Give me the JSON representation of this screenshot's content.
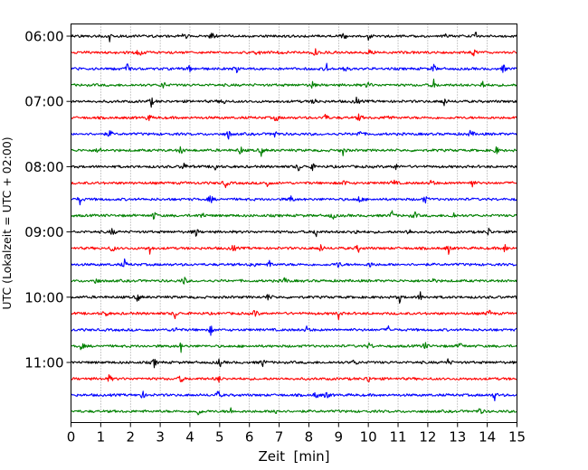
{
  "chart_data": {
    "type": "line",
    "xlabel": "Zeit  [min]",
    "ylabel": "UTC (Lokalzeit = UTC + 02:00)",
    "xlim": [
      0,
      15
    ],
    "x_ticks": [
      "0",
      "1",
      "2",
      "3",
      "4",
      "5",
      "6",
      "7",
      "8",
      "9",
      "10",
      "11",
      "12",
      "13",
      "14",
      "15"
    ],
    "y_ticks": [
      {
        "label": "06:00",
        "trace": 0
      },
      {
        "label": "07:00",
        "trace": 4
      },
      {
        "label": "08:00",
        "trace": 8
      },
      {
        "label": "09:00",
        "trace": 12
      },
      {
        "label": "10:00",
        "trace": 16
      },
      {
        "label": "11:00",
        "trace": 20
      }
    ],
    "grid": "vertical dotted at each minute",
    "trace_interval_minutes": 15,
    "trace_count": 24,
    "color_cycle": [
      "#000000",
      "#ff0000",
      "#0000ff",
      "#008000"
    ],
    "traces": [
      {
        "start": "06:00",
        "events": [
          1.3,
          3.8,
          4.75,
          9.2,
          10.0,
          12.55,
          13.6
        ]
      },
      {
        "start": "06:15",
        "events": [
          2.3,
          6.3,
          8.2,
          10.05,
          13.55
        ]
      },
      {
        "start": "06:30",
        "events": [
          1.9,
          4.0,
          5.55,
          8.6,
          9.2,
          12.2,
          14.55
        ]
      },
      {
        "start": "06:45",
        "events": [
          3.1,
          8.1,
          10.0,
          12.2,
          13.85
        ]
      },
      {
        "start": "07:00",
        "events": [
          2.7,
          5.1,
          8.2,
          9.6,
          12.55
        ]
      },
      {
        "start": "07:15",
        "events": [
          2.6,
          6.9,
          8.55,
          9.7,
          10.65
        ]
      },
      {
        "start": "07:30",
        "events": [
          1.3,
          5.3,
          6.85,
          9.7,
          13.45
        ]
      },
      {
        "start": "07:45",
        "events": [
          0.95,
          3.7,
          5.7,
          6.4,
          9.15,
          14.3
        ]
      },
      {
        "start": "08:00",
        "events": [
          3.8,
          4.85,
          7.65,
          8.1,
          10.9
        ]
      },
      {
        "start": "08:15",
        "events": [
          5.2,
          6.6,
          9.2,
          10.85,
          12.15,
          13.5
        ]
      },
      {
        "start": "08:30",
        "events": [
          0.3,
          4.7,
          7.4,
          9.7,
          11.9
        ]
      },
      {
        "start": "08:45",
        "events": [
          2.8,
          4.4,
          8.8,
          10.8,
          11.55,
          12.85
        ]
      },
      {
        "start": "09:00",
        "events": [
          1.4,
          4.2,
          8.25,
          9.55,
          11.35,
          14.05
        ]
      },
      {
        "start": "09:15",
        "events": [
          1.4,
          2.65,
          5.45,
          8.4,
          9.65,
          12.7,
          14.6
        ]
      },
      {
        "start": "09:30",
        "events": [
          1.8,
          6.1,
          6.7,
          9.0,
          10.1
        ]
      },
      {
        "start": "09:45",
        "events": [
          0.85,
          3.8,
          7.2,
          12.15
        ]
      },
      {
        "start": "10:00",
        "events": [
          2.25,
          6.65,
          11.05,
          11.75
        ]
      },
      {
        "start": "10:15",
        "events": [
          1.15,
          3.5,
          6.2,
          9.0,
          14.05
        ]
      },
      {
        "start": "10:30",
        "events": [
          3.5,
          4.7,
          7.95,
          10.7
        ]
      },
      {
        "start": "10:45",
        "events": [
          0.35,
          3.7,
          10.05,
          11.9,
          13.1
        ]
      },
      {
        "start": "11:00",
        "events": [
          2.8,
          5.0,
          6.45,
          9.55,
          12.7
        ]
      },
      {
        "start": "11:15",
        "events": [
          1.3,
          3.7,
          4.95,
          10.0
        ]
      },
      {
        "start": "11:30",
        "events": [
          2.4,
          4.95,
          8.25,
          8.6,
          14.25
        ]
      },
      {
        "start": "11:45",
        "events": [
          4.3,
          5.35,
          6.9,
          13.75
        ]
      }
    ]
  }
}
